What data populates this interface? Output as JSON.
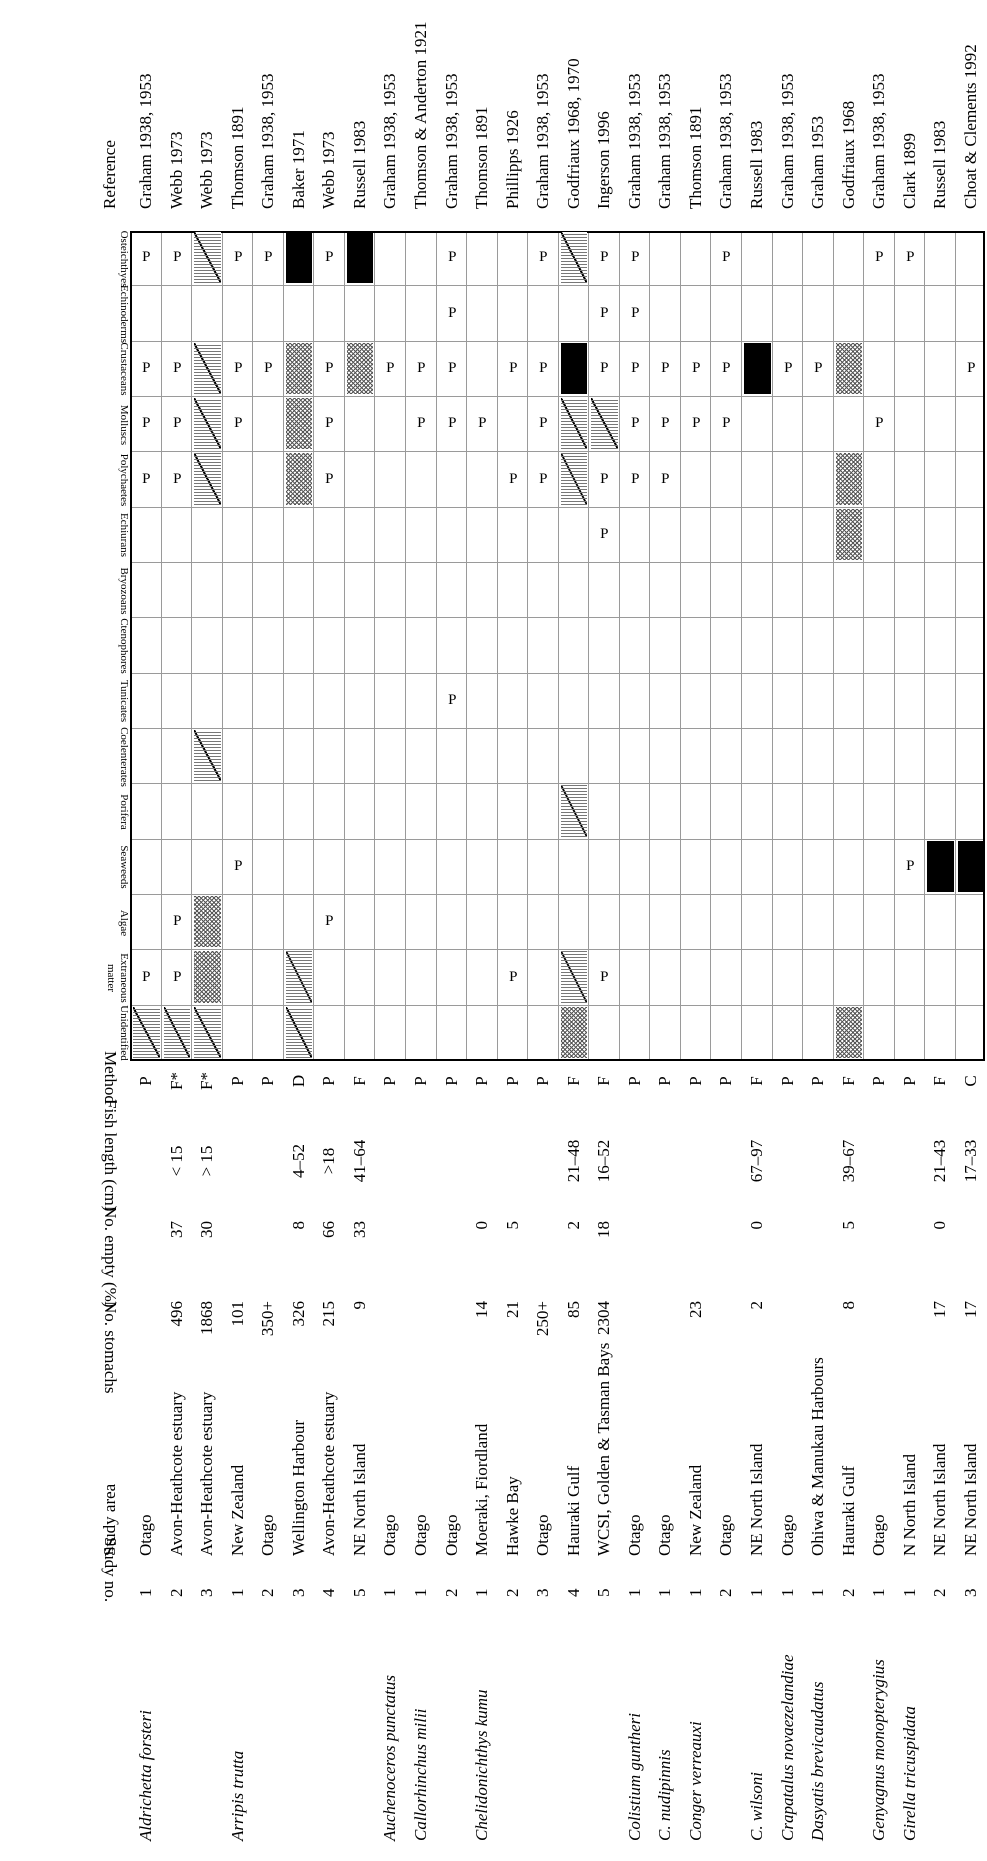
{
  "headers": {
    "study_no": "Study no.",
    "study_area": "Study area",
    "no_stomachs": "No. stomachs",
    "no_empty": "No. empty (%)",
    "fish_length": "Fish length (cm)",
    "method": "Method",
    "reference": "Reference",
    "categories": [
      "Unidentified",
      "Extraneous matter",
      "Algae",
      "Seaweeds",
      "Porifera",
      "Coelenterates",
      "Tunicates",
      "Ctenophores",
      "Bryozoans",
      "Echiurans",
      "Polychaetes",
      "Molluscs",
      "Crustaceans",
      "Echinoderms",
      "Osteichthyes"
    ]
  },
  "rows": [
    {
      "species": "Aldrichetta forsteri",
      "no": "1",
      "area": "Otago",
      "stomachs": "",
      "empty": "",
      "length": "",
      "method": "P",
      "ref": "Graham 1938, 1953",
      "cells": [
        "D",
        "P",
        "",
        "",
        "",
        "",
        "",
        "",
        "",
        "",
        "P",
        "P",
        "P",
        "",
        "P"
      ]
    },
    {
      "species": "",
      "no": "2",
      "area": "Avon-Heathcote estuary",
      "stomachs": "496",
      "empty": "37",
      "length": "< 15",
      "method": "F*",
      "ref": "Webb 1973",
      "cells": [
        "D",
        "P",
        "P",
        "",
        "",
        "",
        "",
        "",
        "",
        "",
        "P",
        "P",
        "P",
        "",
        "P"
      ]
    },
    {
      "species": "",
      "no": "3",
      "area": "Avon-Heathcote estuary",
      "stomachs": "1868",
      "empty": "30",
      "length": "> 15",
      "method": "F*",
      "ref": "Webb 1973",
      "cells": [
        "D",
        "X",
        "X",
        "",
        "",
        "D",
        "",
        "",
        "",
        "",
        "D",
        "D",
        "D",
        "",
        "D"
      ]
    },
    {
      "species": "Arripis trutta",
      "no": "1",
      "area": "New Zealand",
      "stomachs": "101",
      "empty": "",
      "length": "",
      "method": "P",
      "ref": "Thomson 1891",
      "cells": [
        "",
        "",
        "",
        "P",
        "",
        "",
        "",
        "",
        "",
        "",
        "",
        "P",
        "P",
        "",
        "P"
      ]
    },
    {
      "species": "",
      "no": "2",
      "area": "Otago",
      "stomachs": "350+",
      "empty": "",
      "length": "",
      "method": "P",
      "ref": "Graham 1938, 1953",
      "cells": [
        "",
        "",
        "",
        "",
        "",
        "",
        "",
        "",
        "",
        "",
        "",
        "",
        "P",
        "",
        "P"
      ]
    },
    {
      "species": "",
      "no": "3",
      "area": "Wellington Harbour",
      "stomachs": "326",
      "empty": "8",
      "length": "4–52",
      "method": "D",
      "ref": "Baker 1971",
      "cells": [
        "D",
        "D",
        "",
        "",
        "",
        "",
        "",
        "",
        "",
        "",
        "X",
        "X",
        "X",
        "",
        "B"
      ]
    },
    {
      "species": "",
      "no": "4",
      "area": "Avon-Heathcote estuary",
      "stomachs": "215",
      "empty": "66",
      "length": ">18",
      "method": "P",
      "ref": "Webb 1973",
      "cells": [
        "",
        "",
        "P",
        "",
        "",
        "",
        "",
        "",
        "",
        "",
        "P",
        "P",
        "P",
        "",
        "P"
      ]
    },
    {
      "species": "",
      "no": "5",
      "area": "NE North Island",
      "stomachs": "9",
      "empty": "33",
      "length": "41–64",
      "method": "F",
      "ref": "Russell 1983",
      "cells": [
        "",
        "",
        "",
        "",
        "",
        "",
        "",
        "",
        "",
        "",
        "",
        "",
        "X",
        "",
        "B"
      ]
    },
    {
      "species": "Auchenoceros punctatus",
      "no": "1",
      "area": "Otago",
      "stomachs": "",
      "empty": "",
      "length": "",
      "method": "P",
      "ref": "Graham 1938, 1953",
      "cells": [
        "",
        "",
        "",
        "",
        "",
        "",
        "",
        "",
        "",
        "",
        "",
        "",
        "P",
        "",
        ""
      ]
    },
    {
      "species": "Callorhinchus milii",
      "no": "1",
      "area": "Otago",
      "stomachs": "",
      "empty": "",
      "length": "",
      "method": "P",
      "ref": "Thomson & Anderton 1921",
      "cells": [
        "",
        "",
        "",
        "",
        "",
        "",
        "",
        "",
        "",
        "",
        "",
        "P",
        "P",
        "",
        ""
      ]
    },
    {
      "species": "",
      "no": "2",
      "area": "Otago",
      "stomachs": "",
      "empty": "",
      "length": "",
      "method": "P",
      "ref": "Graham 1938, 1953",
      "cells": [
        "",
        "",
        "",
        "",
        "",
        "",
        "P",
        "",
        "",
        "",
        "",
        "P",
        "P",
        "P",
        "P"
      ]
    },
    {
      "species": "Chelidonichthys kumu",
      "no": "1",
      "area": "Moeraki, Fiordland",
      "stomachs": "14",
      "empty": "0",
      "length": "",
      "method": "P",
      "ref": "Thomson 1891",
      "cells": [
        "",
        "",
        "",
        "",
        "",
        "",
        "",
        "",
        "",
        "",
        "",
        "P",
        "",
        "",
        ""
      ]
    },
    {
      "species": "",
      "no": "2",
      "area": "Hawke Bay",
      "stomachs": "21",
      "empty": "5",
      "length": "",
      "method": "P",
      "ref": "Phillipps 1926",
      "cells": [
        "",
        "P",
        "",
        "",
        "",
        "",
        "",
        "",
        "",
        "",
        "P",
        "",
        "P",
        "",
        ""
      ]
    },
    {
      "species": "",
      "no": "3",
      "area": "Otago",
      "stomachs": "250+",
      "empty": "",
      "length": "",
      "method": "P",
      "ref": "Graham 1938, 1953",
      "cells": [
        "",
        "",
        "",
        "",
        "",
        "",
        "",
        "",
        "",
        "",
        "P",
        "P",
        "P",
        "",
        "P"
      ]
    },
    {
      "species": "",
      "no": "4",
      "area": "Hauraki Gulf",
      "stomachs": "85",
      "empty": "2",
      "length": "21–48",
      "method": "F",
      "ref": "Godfriaux 1968, 1970",
      "cells": [
        "X",
        "D",
        "",
        "",
        "D",
        "",
        "",
        "",
        "",
        "",
        "D",
        "D",
        "B",
        "",
        "D"
      ]
    },
    {
      "species": "",
      "no": "5",
      "area": "WCSI, Golden & Tasman Bays",
      "stomachs": "2304",
      "empty": "18",
      "length": "16–52",
      "method": "F",
      "ref": "Ingerson 1996",
      "cells": [
        "",
        "P",
        "",
        "",
        "",
        "",
        "",
        "",
        "",
        "P",
        "P",
        "D",
        "P",
        "P",
        "P"
      ]
    },
    {
      "species": "Colistium guntheri",
      "no": "1",
      "area": "Otago",
      "stomachs": "",
      "empty": "",
      "length": "",
      "method": "P",
      "ref": "Graham 1938, 1953",
      "cells": [
        "",
        "",
        "",
        "",
        "",
        "",
        "",
        "",
        "",
        "",
        "P",
        "P",
        "P",
        "P",
        "P"
      ]
    },
    {
      "species": "C. nudipinnis",
      "no": "1",
      "area": "Otago",
      "stomachs": "",
      "empty": "",
      "length": "",
      "method": "P",
      "ref": "Graham 1938, 1953",
      "cells": [
        "",
        "",
        "",
        "",
        "",
        "",
        "",
        "",
        "",
        "",
        "P",
        "P",
        "P",
        "",
        ""
      ]
    },
    {
      "species": "Conger verreauxi",
      "no": "1",
      "area": "New Zealand",
      "stomachs": "23",
      "empty": "",
      "length": "",
      "method": "P",
      "ref": "Thomson 1891",
      "cells": [
        "",
        "",
        "",
        "",
        "",
        "",
        "",
        "",
        "",
        "",
        "",
        "P",
        "P",
        "",
        ""
      ]
    },
    {
      "species": "",
      "no": "2",
      "area": "Otago",
      "stomachs": "",
      "empty": "",
      "length": "",
      "method": "P",
      "ref": "Graham 1938, 1953",
      "cells": [
        "",
        "",
        "",
        "",
        "",
        "",
        "",
        "",
        "",
        "",
        "",
        "P",
        "P",
        "",
        "P"
      ]
    },
    {
      "species": "C. wilsoni",
      "no": "1",
      "area": "NE North Island",
      "stomachs": "2",
      "empty": "0",
      "length": "67–97",
      "method": "F",
      "ref": "Russell 1983",
      "cells": [
        "",
        "",
        "",
        "",
        "",
        "",
        "",
        "",
        "",
        "",
        "",
        "",
        "B",
        "",
        ""
      ]
    },
    {
      "species": "Crapatalus novaezelandiae",
      "no": "1",
      "area": "Otago",
      "stomachs": "",
      "empty": "",
      "length": "",
      "method": "P",
      "ref": "Graham 1938, 1953",
      "cells": [
        "",
        "",
        "",
        "",
        "",
        "",
        "",
        "",
        "",
        "",
        "",
        "",
        "P",
        "",
        ""
      ]
    },
    {
      "species": "Dasyatis brevicaudatus",
      "no": "1",
      "area": "Ohiwa & Manukau Harbours",
      "stomachs": "",
      "empty": "",
      "length": "",
      "method": "P",
      "ref": "Graham 1953",
      "cells": [
        "",
        "",
        "",
        "",
        "",
        "",
        "",
        "",
        "",
        "",
        "",
        "",
        "P",
        "",
        ""
      ]
    },
    {
      "species": "",
      "no": "2",
      "area": "Hauraki Gulf",
      "stomachs": "8",
      "empty": "5",
      "length": "39–67",
      "method": "F",
      "ref": "Godfriaux 1968",
      "cells": [
        "X",
        "",
        "",
        "",
        "",
        "",
        "",
        "",
        "",
        "X",
        "X",
        "",
        "X",
        "",
        ""
      ]
    },
    {
      "species": "Genyagnus monopterygius",
      "no": "1",
      "area": "Otago",
      "stomachs": "",
      "empty": "",
      "length": "",
      "method": "P",
      "ref": "Graham 1938, 1953",
      "cells": [
        "",
        "",
        "",
        "",
        "",
        "",
        "",
        "",
        "",
        "",
        "",
        "P",
        "",
        "",
        "P"
      ]
    },
    {
      "species": "Girella tricuspidata",
      "no": "1",
      "area": "N North Island",
      "stomachs": "",
      "empty": "",
      "length": "",
      "method": "P",
      "ref": "Clark 1899",
      "cells": [
        "",
        "",
        "",
        "P",
        "",
        "",
        "",
        "",
        "",
        "",
        "",
        "",
        "",
        "",
        "P"
      ]
    },
    {
      "species": "",
      "no": "2",
      "area": "NE North Island",
      "stomachs": "17",
      "empty": "0",
      "length": "21–43",
      "method": "F",
      "ref": "Russell 1983",
      "cells": [
        "",
        "",
        "",
        "B",
        "",
        "",
        "",
        "",
        "",
        "",
        "",
        "",
        "",
        "",
        ""
      ]
    },
    {
      "species": "",
      "no": "3",
      "area": "NE North Island",
      "stomachs": "17",
      "empty": "",
      "length": "17–33",
      "method": "C",
      "ref": "Choat & Clements 1992",
      "cells": [
        "",
        "",
        "",
        "B",
        "",
        "",
        "",
        "",
        "",
        "",
        "",
        "",
        "P",
        "",
        ""
      ]
    }
  ]
}
